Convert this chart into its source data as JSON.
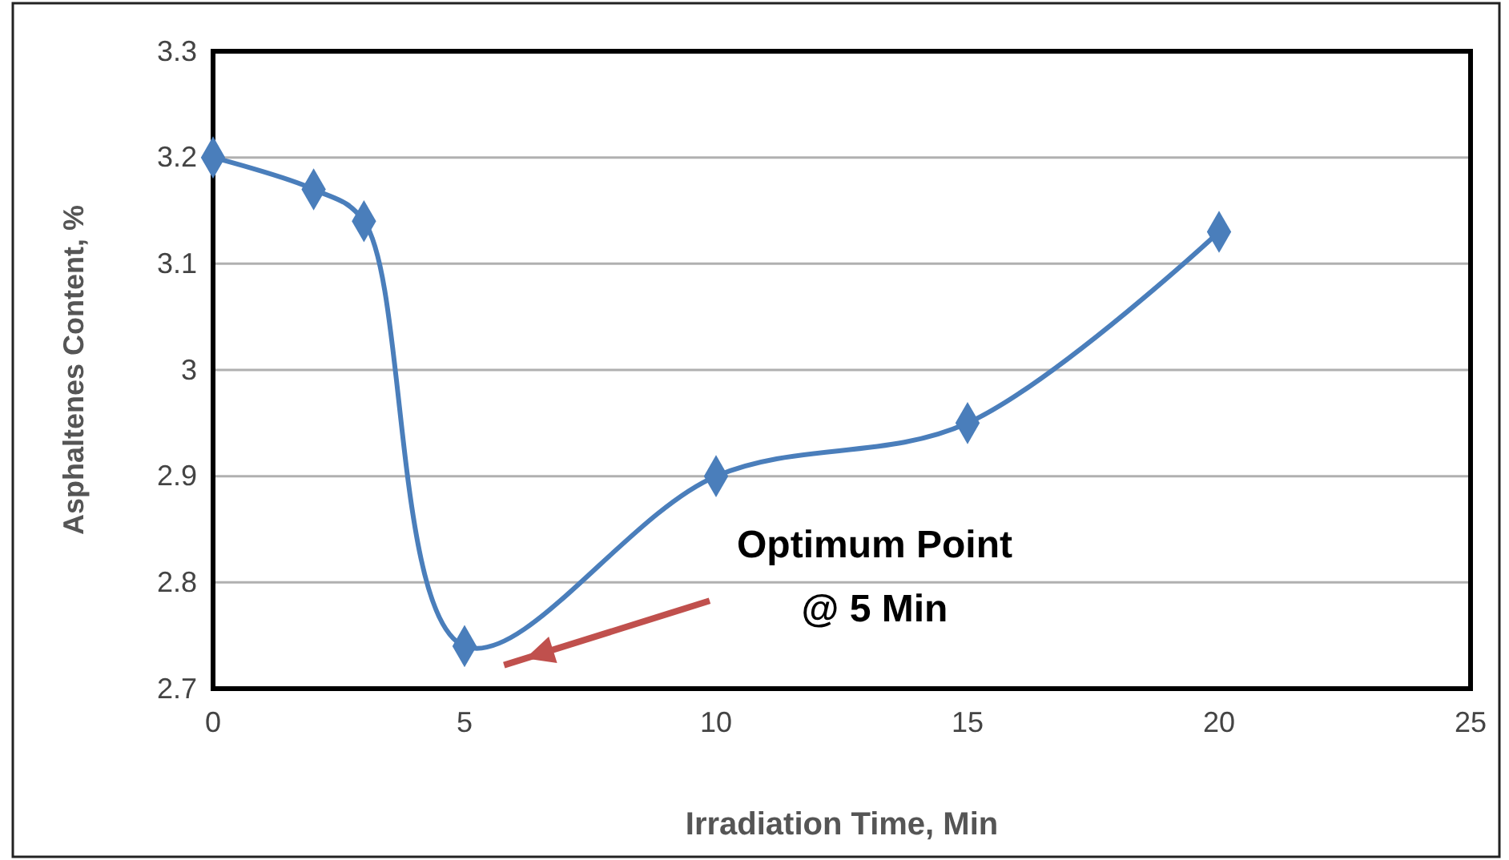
{
  "chart_data": {
    "type": "line",
    "xlabel": "Irradiation Time, Min",
    "ylabel": "Asphaltenes Content, %",
    "x": [
      0,
      2,
      3,
      5,
      10,
      15,
      20
    ],
    "series": [
      {
        "color": "#4a7ebb",
        "values": [
          3.2,
          3.17,
          3.14,
          2.74,
          2.9,
          2.95,
          3.13
        ]
      }
    ],
    "xlim": [
      0,
      25
    ],
    "xticks": [
      0,
      5,
      10,
      15,
      20,
      25
    ],
    "ylim": [
      2.7,
      3.3
    ],
    "yticks": [
      2.7,
      2.8,
      2.9,
      3,
      3.1,
      3.2,
      3.3
    ],
    "grid": "y",
    "marker": "diamond",
    "line_style": "solid",
    "annotations": [
      "Optimum Point\n@ 5 Min"
    ]
  }
}
